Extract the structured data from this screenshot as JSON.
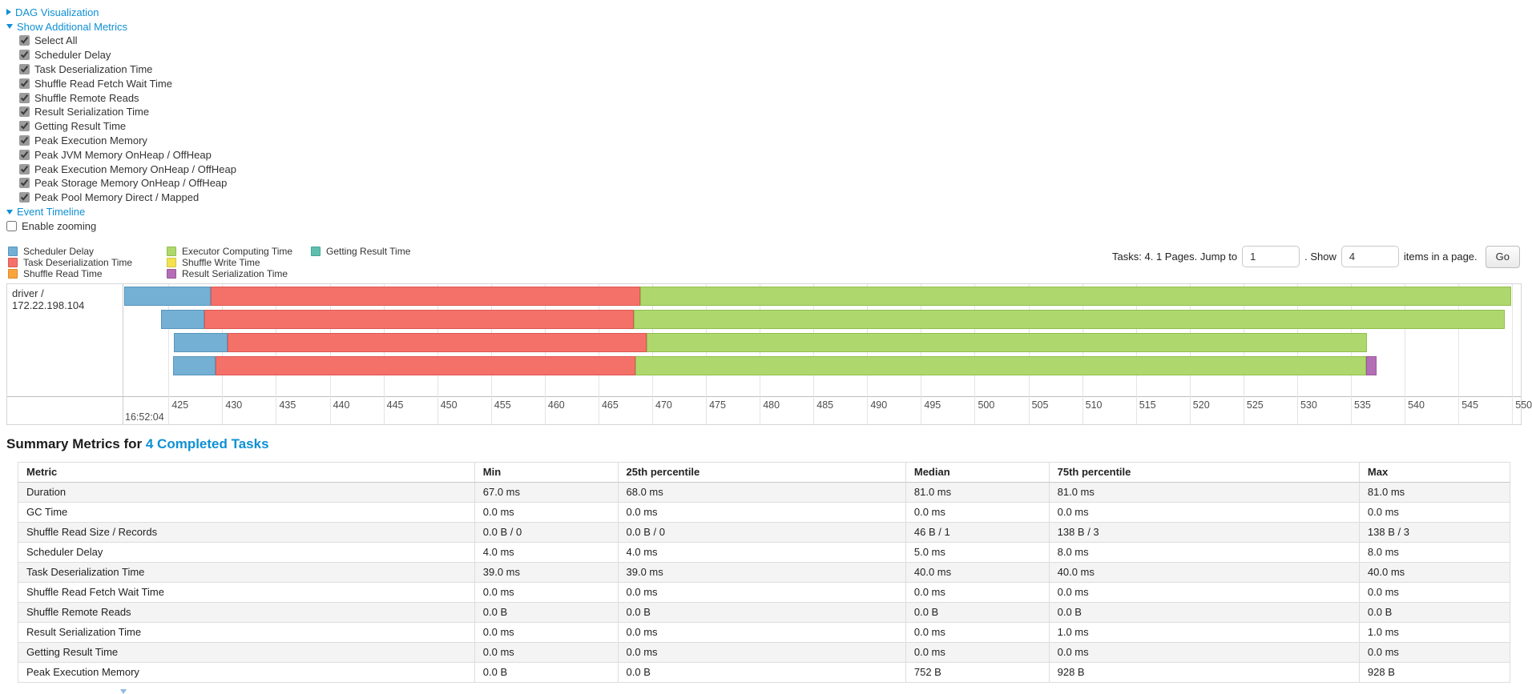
{
  "toggles": {
    "dag_label": "DAG Visualization",
    "metrics_label": "Show Additional Metrics",
    "timeline_label": "Event Timeline"
  },
  "metrics_panel": {
    "items": [
      "Select All",
      "Scheduler Delay",
      "Task Deserialization Time",
      "Shuffle Read Fetch Wait Time",
      "Shuffle Remote Reads",
      "Result Serialization Time",
      "Getting Result Time",
      "Peak Execution Memory",
      "Peak JVM Memory OnHeap / OffHeap",
      "Peak Execution Memory OnHeap / OffHeap",
      "Peak Storage Memory OnHeap / OffHeap",
      "Peak Pool Memory Direct / Mapped"
    ],
    "all_checked": true
  },
  "timeline": {
    "enable_zooming_label": "Enable zooming",
    "zooming_checked": false
  },
  "legend": {
    "items": {
      "scheduler_delay": {
        "label": "Scheduler Delay",
        "color": "#74B0D4",
        "border": "#5795BC"
      },
      "task_deserialization": {
        "label": "Task Deserialization Time",
        "color": "#F4716A",
        "border": "#DE5751"
      },
      "shuffle_read": {
        "label": "Shuffle Read Time",
        "color": "#FAA43D",
        "border": "#E08A26"
      },
      "executor_computing": {
        "label": "Executor Computing Time",
        "color": "#AED86E",
        "border": "#8FBE4B"
      },
      "shuffle_write": {
        "label": "Shuffle Write Time",
        "color": "#F2E252",
        "border": "#D8C636"
      },
      "result_serialization": {
        "label": "Result Serialization Time",
        "color": "#B46EB6",
        "border": "#985899"
      },
      "getting_result": {
        "label": "Getting Result Time",
        "color": "#5FBFAF",
        "border": "#45A595"
      }
    },
    "columns": [
      [
        "scheduler_delay",
        "task_deserialization",
        "shuffle_read"
      ],
      [
        "executor_computing",
        "shuffle_write",
        "result_serialization"
      ],
      [
        "getting_result"
      ]
    ]
  },
  "pagination": {
    "tasks_text": "Tasks: 4. 1 Pages. Jump to",
    "jump_value": "1",
    "show_text": ". Show",
    "show_value": "4",
    "items_text": "items in a page.",
    "go_label": "Go"
  },
  "chart_data": {
    "type": "timeline",
    "group_label": "driver / 172.22.198.104",
    "axis": {
      "min": 420.8,
      "max": 550.8,
      "ticks": [
        425,
        430,
        435,
        440,
        445,
        450,
        455,
        460,
        465,
        470,
        475,
        480,
        485,
        490,
        495,
        500,
        505,
        510,
        515,
        520,
        525,
        530,
        535,
        540,
        545,
        550
      ],
      "major_label": "16:52:04",
      "units": "milliseconds within 16:52:04"
    },
    "tasks": [
      {
        "start_ms": 420.9,
        "segments": [
          {
            "metric": "scheduler_delay",
            "ms": 8
          },
          {
            "metric": "task_deserialization",
            "ms": 40
          },
          {
            "metric": "executor_computing",
            "ms": 81
          }
        ]
      },
      {
        "start_ms": 424.3,
        "segments": [
          {
            "metric": "scheduler_delay",
            "ms": 4
          },
          {
            "metric": "task_deserialization",
            "ms": 40
          },
          {
            "metric": "executor_computing",
            "ms": 81
          }
        ]
      },
      {
        "start_ms": 425.5,
        "segments": [
          {
            "metric": "scheduler_delay",
            "ms": 5
          },
          {
            "metric": "task_deserialization",
            "ms": 39
          },
          {
            "metric": "executor_computing",
            "ms": 67
          }
        ]
      },
      {
        "start_ms": 425.4,
        "segments": [
          {
            "metric": "scheduler_delay",
            "ms": 4
          },
          {
            "metric": "task_deserialization",
            "ms": 39
          },
          {
            "metric": "executor_computing",
            "ms": 68
          },
          {
            "metric": "result_serialization",
            "ms": 1
          }
        ]
      }
    ]
  },
  "summary": {
    "title_prefix": "Summary Metrics for",
    "title_link": "4 Completed Tasks",
    "table": {
      "headers": [
        "Metric",
        "Min",
        "25th percentile",
        "Median",
        "75th percentile",
        "Max"
      ],
      "rows": [
        [
          "Duration",
          "67.0 ms",
          "68.0 ms",
          "81.0 ms",
          "81.0 ms",
          "81.0 ms"
        ],
        [
          "GC Time",
          "0.0 ms",
          "0.0 ms",
          "0.0 ms",
          "0.0 ms",
          "0.0 ms"
        ],
        [
          "Shuffle Read Size / Records",
          "0.0 B / 0",
          "0.0 B / 0",
          "46 B / 1",
          "138 B / 3",
          "138 B / 3"
        ],
        [
          "Scheduler Delay",
          "4.0 ms",
          "4.0 ms",
          "5.0 ms",
          "8.0 ms",
          "8.0 ms"
        ],
        [
          "Task Deserialization Time",
          "39.0 ms",
          "39.0 ms",
          "40.0 ms",
          "40.0 ms",
          "40.0 ms"
        ],
        [
          "Shuffle Read Fetch Wait Time",
          "0.0 ms",
          "0.0 ms",
          "0.0 ms",
          "0.0 ms",
          "0.0 ms"
        ],
        [
          "Shuffle Remote Reads",
          "0.0 B",
          "0.0 B",
          "0.0 B",
          "0.0 B",
          "0.0 B"
        ],
        [
          "Result Serialization Time",
          "0.0 ms",
          "0.0 ms",
          "0.0 ms",
          "1.0 ms",
          "1.0 ms"
        ],
        [
          "Getting Result Time",
          "0.0 ms",
          "0.0 ms",
          "0.0 ms",
          "0.0 ms",
          "0.0 ms"
        ],
        [
          "Peak Execution Memory",
          "0.0 B",
          "0.0 B",
          "752 B",
          "928 B",
          "928 B"
        ]
      ]
    }
  }
}
